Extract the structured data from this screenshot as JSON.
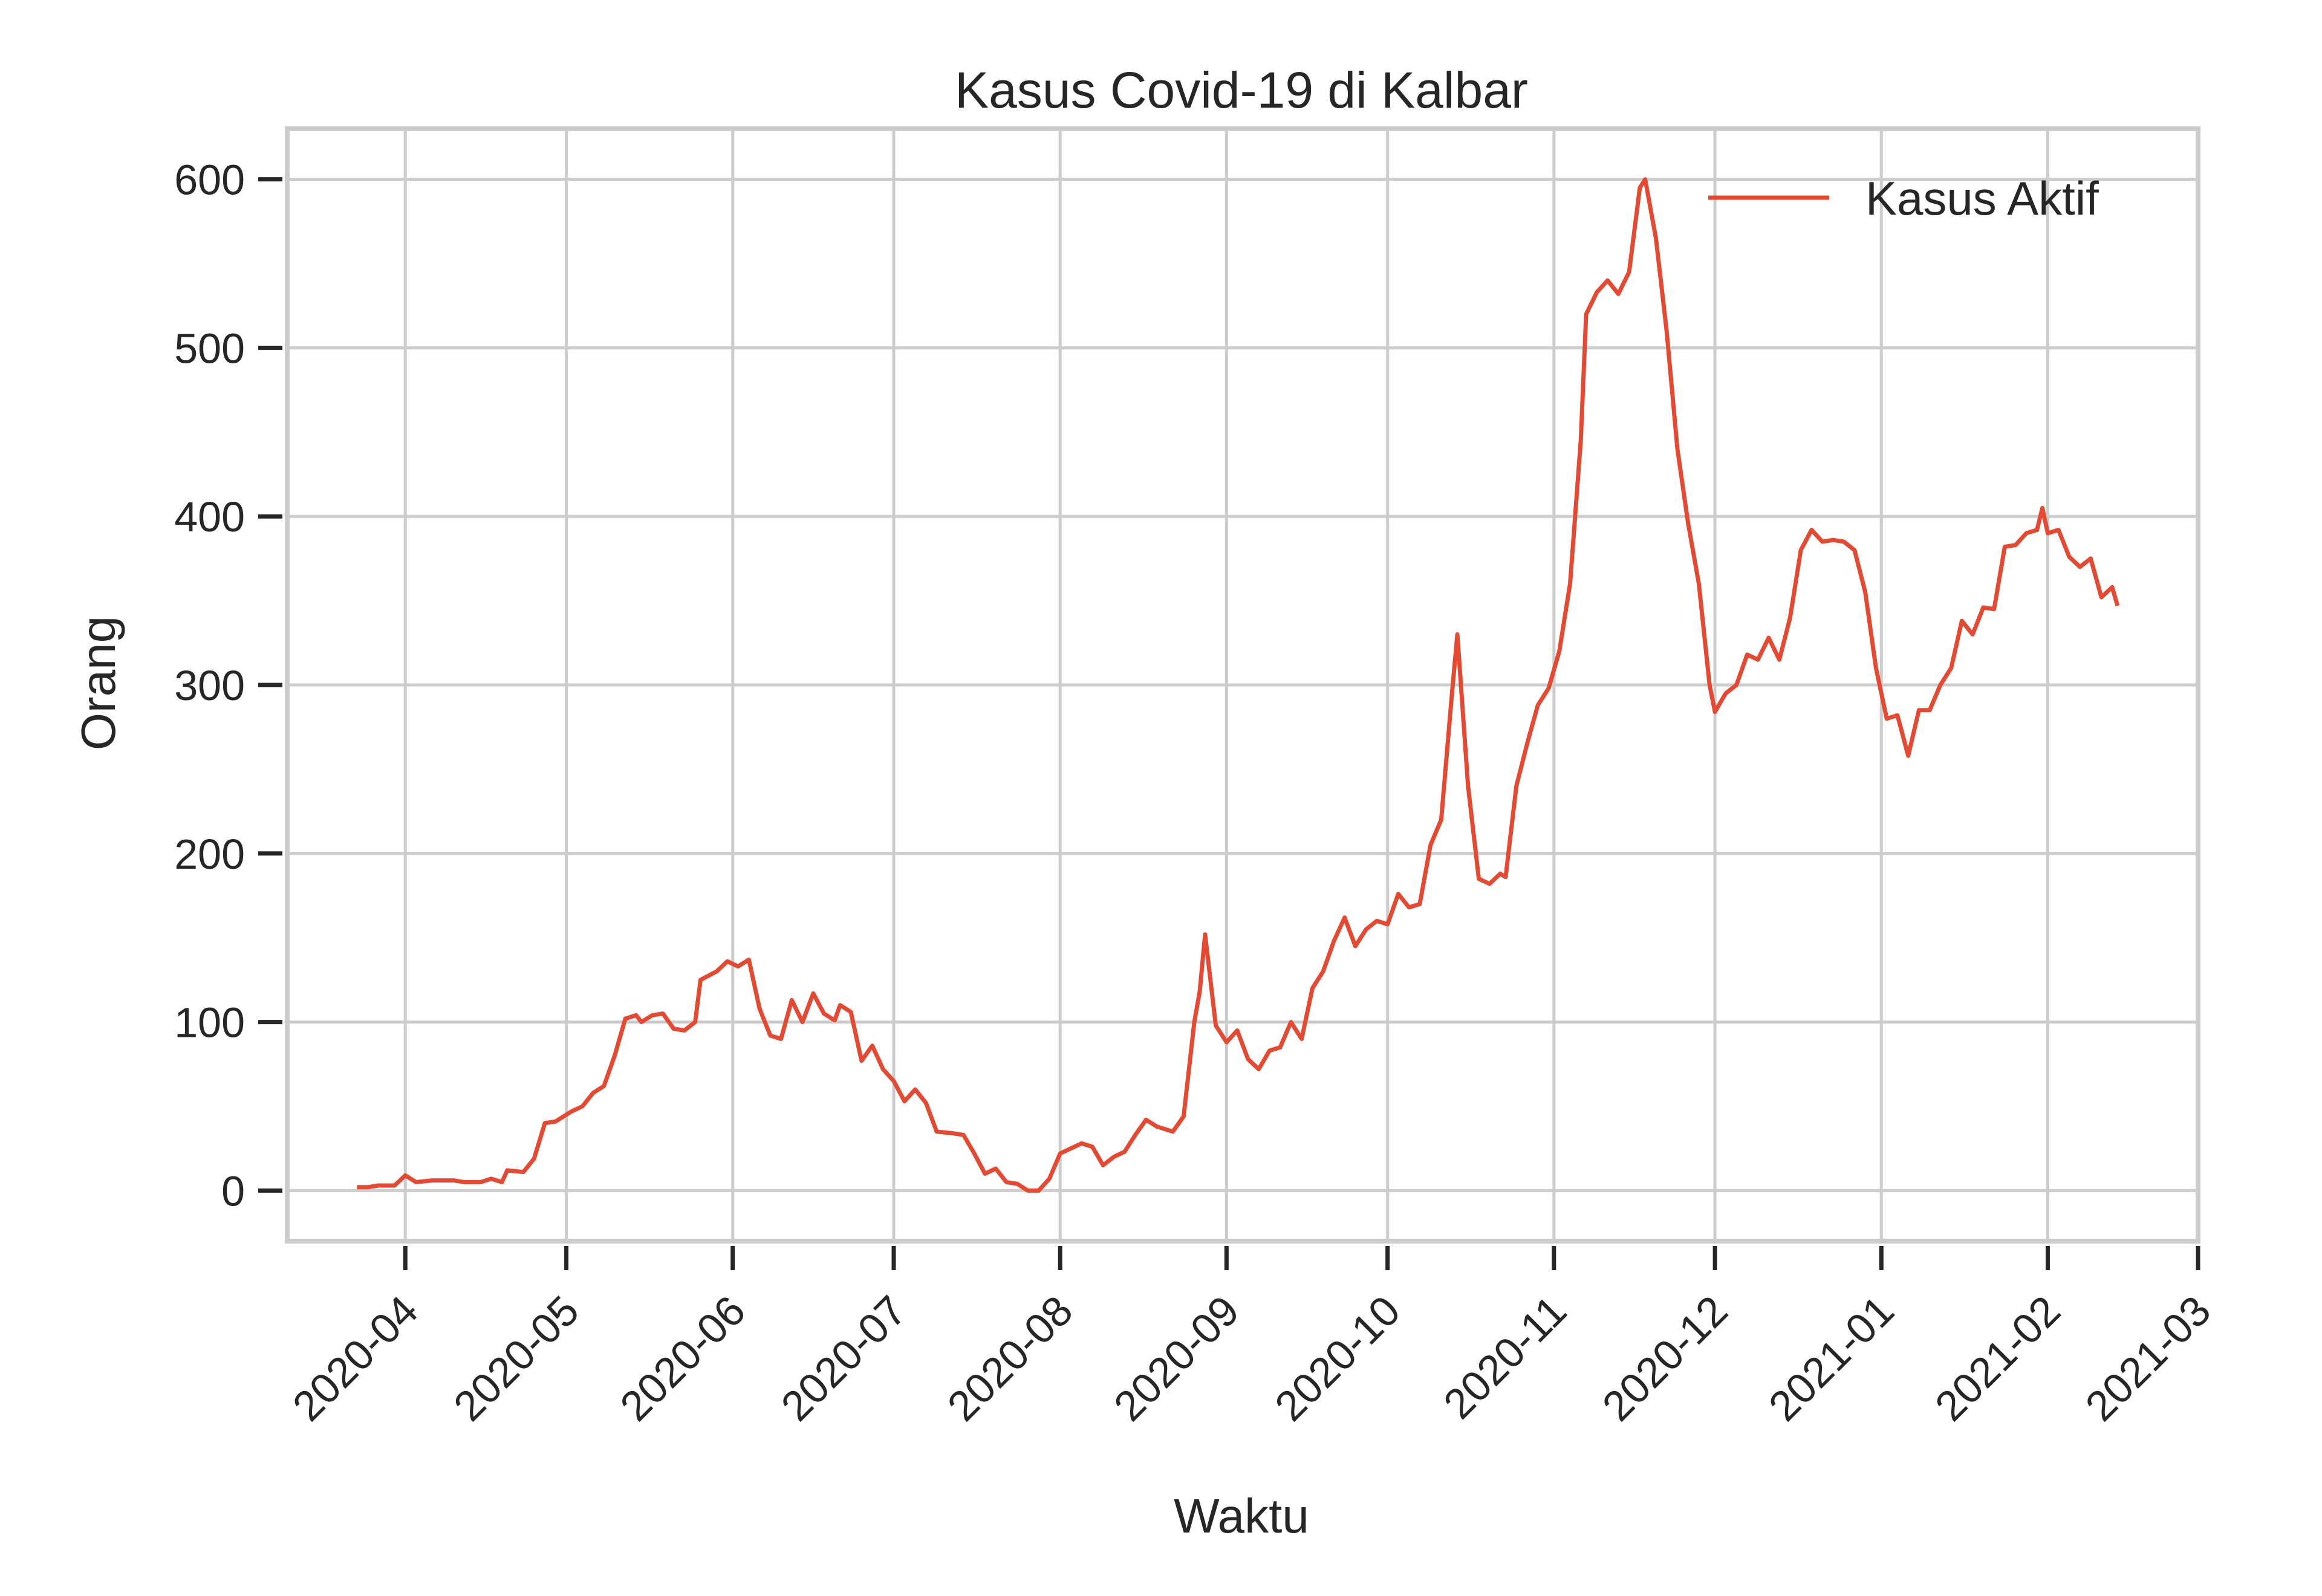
{
  "chart_data": {
    "type": "line",
    "title": "Kasus Covid-19 di Kalbar",
    "xlabel": "Waktu",
    "ylabel": "Orang",
    "ylim": [
      -30,
      630
    ],
    "yticks": [
      0,
      100,
      200,
      300,
      400,
      500,
      600
    ],
    "xlim": [
      "2020-03-10",
      "2021-03-01"
    ],
    "xticks": [
      "2020-04-01",
      "2020-05-01",
      "2020-06-01",
      "2020-07-01",
      "2020-08-01",
      "2020-09-01",
      "2020-10-01",
      "2020-11-01",
      "2020-12-01",
      "2021-01-01",
      "2021-02-01",
      "2021-03-01"
    ],
    "xtick_labels": [
      "2020-04",
      "2020-05",
      "2020-06",
      "2020-07",
      "2020-08",
      "2020-09",
      "2020-10",
      "2020-11",
      "2020-12",
      "2021-01",
      "2021-02",
      "2021-03"
    ],
    "grid": true,
    "legend": "top-right",
    "series": [
      {
        "name": "Kasus Aktif",
        "color": "#e24a33",
        "points": [
          [
            "2020-03-23",
            2
          ],
          [
            "2020-03-25",
            2
          ],
          [
            "2020-03-27",
            3
          ],
          [
            "2020-03-30",
            3
          ],
          [
            "2020-04-01",
            9
          ],
          [
            "2020-04-03",
            5
          ],
          [
            "2020-04-06",
            6
          ],
          [
            "2020-04-08",
            6
          ],
          [
            "2020-04-10",
            6
          ],
          [
            "2020-04-12",
            5
          ],
          [
            "2020-04-15",
            5
          ],
          [
            "2020-04-17",
            7
          ],
          [
            "2020-04-19",
            5
          ],
          [
            "2020-04-20",
            12
          ],
          [
            "2020-04-23",
            11
          ],
          [
            "2020-04-25",
            19
          ],
          [
            "2020-04-27",
            40
          ],
          [
            "2020-04-29",
            41
          ],
          [
            "2020-05-02",
            47
          ],
          [
            "2020-05-04",
            50
          ],
          [
            "2020-05-06",
            58
          ],
          [
            "2020-05-08",
            62
          ],
          [
            "2020-05-10",
            80
          ],
          [
            "2020-05-12",
            102
          ],
          [
            "2020-05-14",
            104
          ],
          [
            "2020-05-15",
            100
          ],
          [
            "2020-05-17",
            104
          ],
          [
            "2020-05-19",
            105
          ],
          [
            "2020-05-21",
            96
          ],
          [
            "2020-05-23",
            95
          ],
          [
            "2020-05-25",
            100
          ],
          [
            "2020-05-26",
            125
          ],
          [
            "2020-05-29",
            130
          ],
          [
            "2020-05-31",
            136
          ],
          [
            "2020-06-02",
            133
          ],
          [
            "2020-06-04",
            137
          ],
          [
            "2020-06-06",
            108
          ],
          [
            "2020-06-08",
            92
          ],
          [
            "2020-06-10",
            90
          ],
          [
            "2020-06-12",
            113
          ],
          [
            "2020-06-14",
            100
          ],
          [
            "2020-06-16",
            117
          ],
          [
            "2020-06-18",
            105
          ],
          [
            "2020-06-20",
            101
          ],
          [
            "2020-06-21",
            110
          ],
          [
            "2020-06-23",
            106
          ],
          [
            "2020-06-25",
            77
          ],
          [
            "2020-06-27",
            86
          ],
          [
            "2020-06-29",
            72
          ],
          [
            "2020-07-01",
            65
          ],
          [
            "2020-07-03",
            53
          ],
          [
            "2020-07-05",
            60
          ],
          [
            "2020-07-07",
            52
          ],
          [
            "2020-07-09",
            35
          ],
          [
            "2020-07-12",
            34
          ],
          [
            "2020-07-14",
            33
          ],
          [
            "2020-07-16",
            22
          ],
          [
            "2020-07-18",
            10
          ],
          [
            "2020-07-20",
            13
          ],
          [
            "2020-07-22",
            5
          ],
          [
            "2020-07-24",
            4
          ],
          [
            "2020-07-26",
            0
          ],
          [
            "2020-07-28",
            0
          ],
          [
            "2020-07-30",
            7
          ],
          [
            "2020-08-01",
            22
          ],
          [
            "2020-08-03",
            25
          ],
          [
            "2020-08-05",
            28
          ],
          [
            "2020-08-07",
            26
          ],
          [
            "2020-08-09",
            15
          ],
          [
            "2020-08-11",
            20
          ],
          [
            "2020-08-13",
            23
          ],
          [
            "2020-08-15",
            33
          ],
          [
            "2020-08-17",
            42
          ],
          [
            "2020-08-19",
            38
          ],
          [
            "2020-08-22",
            35
          ],
          [
            "2020-08-24",
            44
          ],
          [
            "2020-08-26",
            100
          ],
          [
            "2020-08-27",
            118
          ],
          [
            "2020-08-28",
            152
          ],
          [
            "2020-08-30",
            98
          ],
          [
            "2020-09-01",
            88
          ],
          [
            "2020-09-03",
            95
          ],
          [
            "2020-09-05",
            78
          ],
          [
            "2020-09-07",
            72
          ],
          [
            "2020-09-09",
            83
          ],
          [
            "2020-09-11",
            85
          ],
          [
            "2020-09-13",
            100
          ],
          [
            "2020-09-15",
            90
          ],
          [
            "2020-09-17",
            120
          ],
          [
            "2020-09-19",
            130
          ],
          [
            "2020-09-21",
            148
          ],
          [
            "2020-09-23",
            162
          ],
          [
            "2020-09-25",
            145
          ],
          [
            "2020-09-27",
            155
          ],
          [
            "2020-09-29",
            160
          ],
          [
            "2020-10-01",
            158
          ],
          [
            "2020-10-03",
            176
          ],
          [
            "2020-10-05",
            168
          ],
          [
            "2020-10-07",
            170
          ],
          [
            "2020-10-09",
            205
          ],
          [
            "2020-10-11",
            220
          ],
          [
            "2020-10-13",
            295
          ],
          [
            "2020-10-14",
            330
          ],
          [
            "2020-10-16",
            240
          ],
          [
            "2020-10-18",
            185
          ],
          [
            "2020-10-20",
            182
          ],
          [
            "2020-10-22",
            188
          ],
          [
            "2020-10-23",
            186
          ],
          [
            "2020-10-25",
            240
          ],
          [
            "2020-10-27",
            265
          ],
          [
            "2020-10-29",
            288
          ],
          [
            "2020-10-31",
            298
          ],
          [
            "2020-11-02",
            320
          ],
          [
            "2020-11-04",
            360
          ],
          [
            "2020-11-06",
            445
          ],
          [
            "2020-11-07",
            520
          ],
          [
            "2020-11-09",
            533
          ],
          [
            "2020-11-11",
            540
          ],
          [
            "2020-11-13",
            532
          ],
          [
            "2020-11-15",
            545
          ],
          [
            "2020-11-17",
            595
          ],
          [
            "2020-11-18",
            600
          ],
          [
            "2020-11-20",
            565
          ],
          [
            "2020-11-22",
            510
          ],
          [
            "2020-11-24",
            440
          ],
          [
            "2020-11-26",
            396
          ],
          [
            "2020-11-28",
            360
          ],
          [
            "2020-11-30",
            300
          ],
          [
            "2020-12-01",
            284
          ],
          [
            "2020-12-03",
            295
          ],
          [
            "2020-12-05",
            300
          ],
          [
            "2020-12-07",
            318
          ],
          [
            "2020-12-09",
            315
          ],
          [
            "2020-12-11",
            328
          ],
          [
            "2020-12-13",
            315
          ],
          [
            "2020-12-15",
            340
          ],
          [
            "2020-12-17",
            380
          ],
          [
            "2020-12-19",
            392
          ],
          [
            "2020-12-21",
            385
          ],
          [
            "2020-12-23",
            386
          ],
          [
            "2020-12-25",
            385
          ],
          [
            "2020-12-27",
            380
          ],
          [
            "2020-12-29",
            355
          ],
          [
            "2020-12-31",
            310
          ],
          [
            "2021-01-02",
            280
          ],
          [
            "2021-01-04",
            282
          ],
          [
            "2021-01-06",
            258
          ],
          [
            "2021-01-08",
            285
          ],
          [
            "2021-01-10",
            285
          ],
          [
            "2021-01-12",
            300
          ],
          [
            "2021-01-14",
            310
          ],
          [
            "2021-01-16",
            338
          ],
          [
            "2021-01-18",
            330
          ],
          [
            "2021-01-20",
            346
          ],
          [
            "2021-01-22",
            345
          ],
          [
            "2021-01-24",
            382
          ],
          [
            "2021-01-26",
            383
          ],
          [
            "2021-01-28",
            390
          ],
          [
            "2021-01-30",
            392
          ],
          [
            "2021-01-31",
            405
          ],
          [
            "2021-02-01",
            390
          ],
          [
            "2021-02-03",
            392
          ],
          [
            "2021-02-05",
            376
          ],
          [
            "2021-02-07",
            370
          ],
          [
            "2021-02-09",
            375
          ],
          [
            "2021-02-11",
            352
          ],
          [
            "2021-02-13",
            358
          ],
          [
            "2021-02-14",
            347
          ]
        ]
      }
    ]
  }
}
